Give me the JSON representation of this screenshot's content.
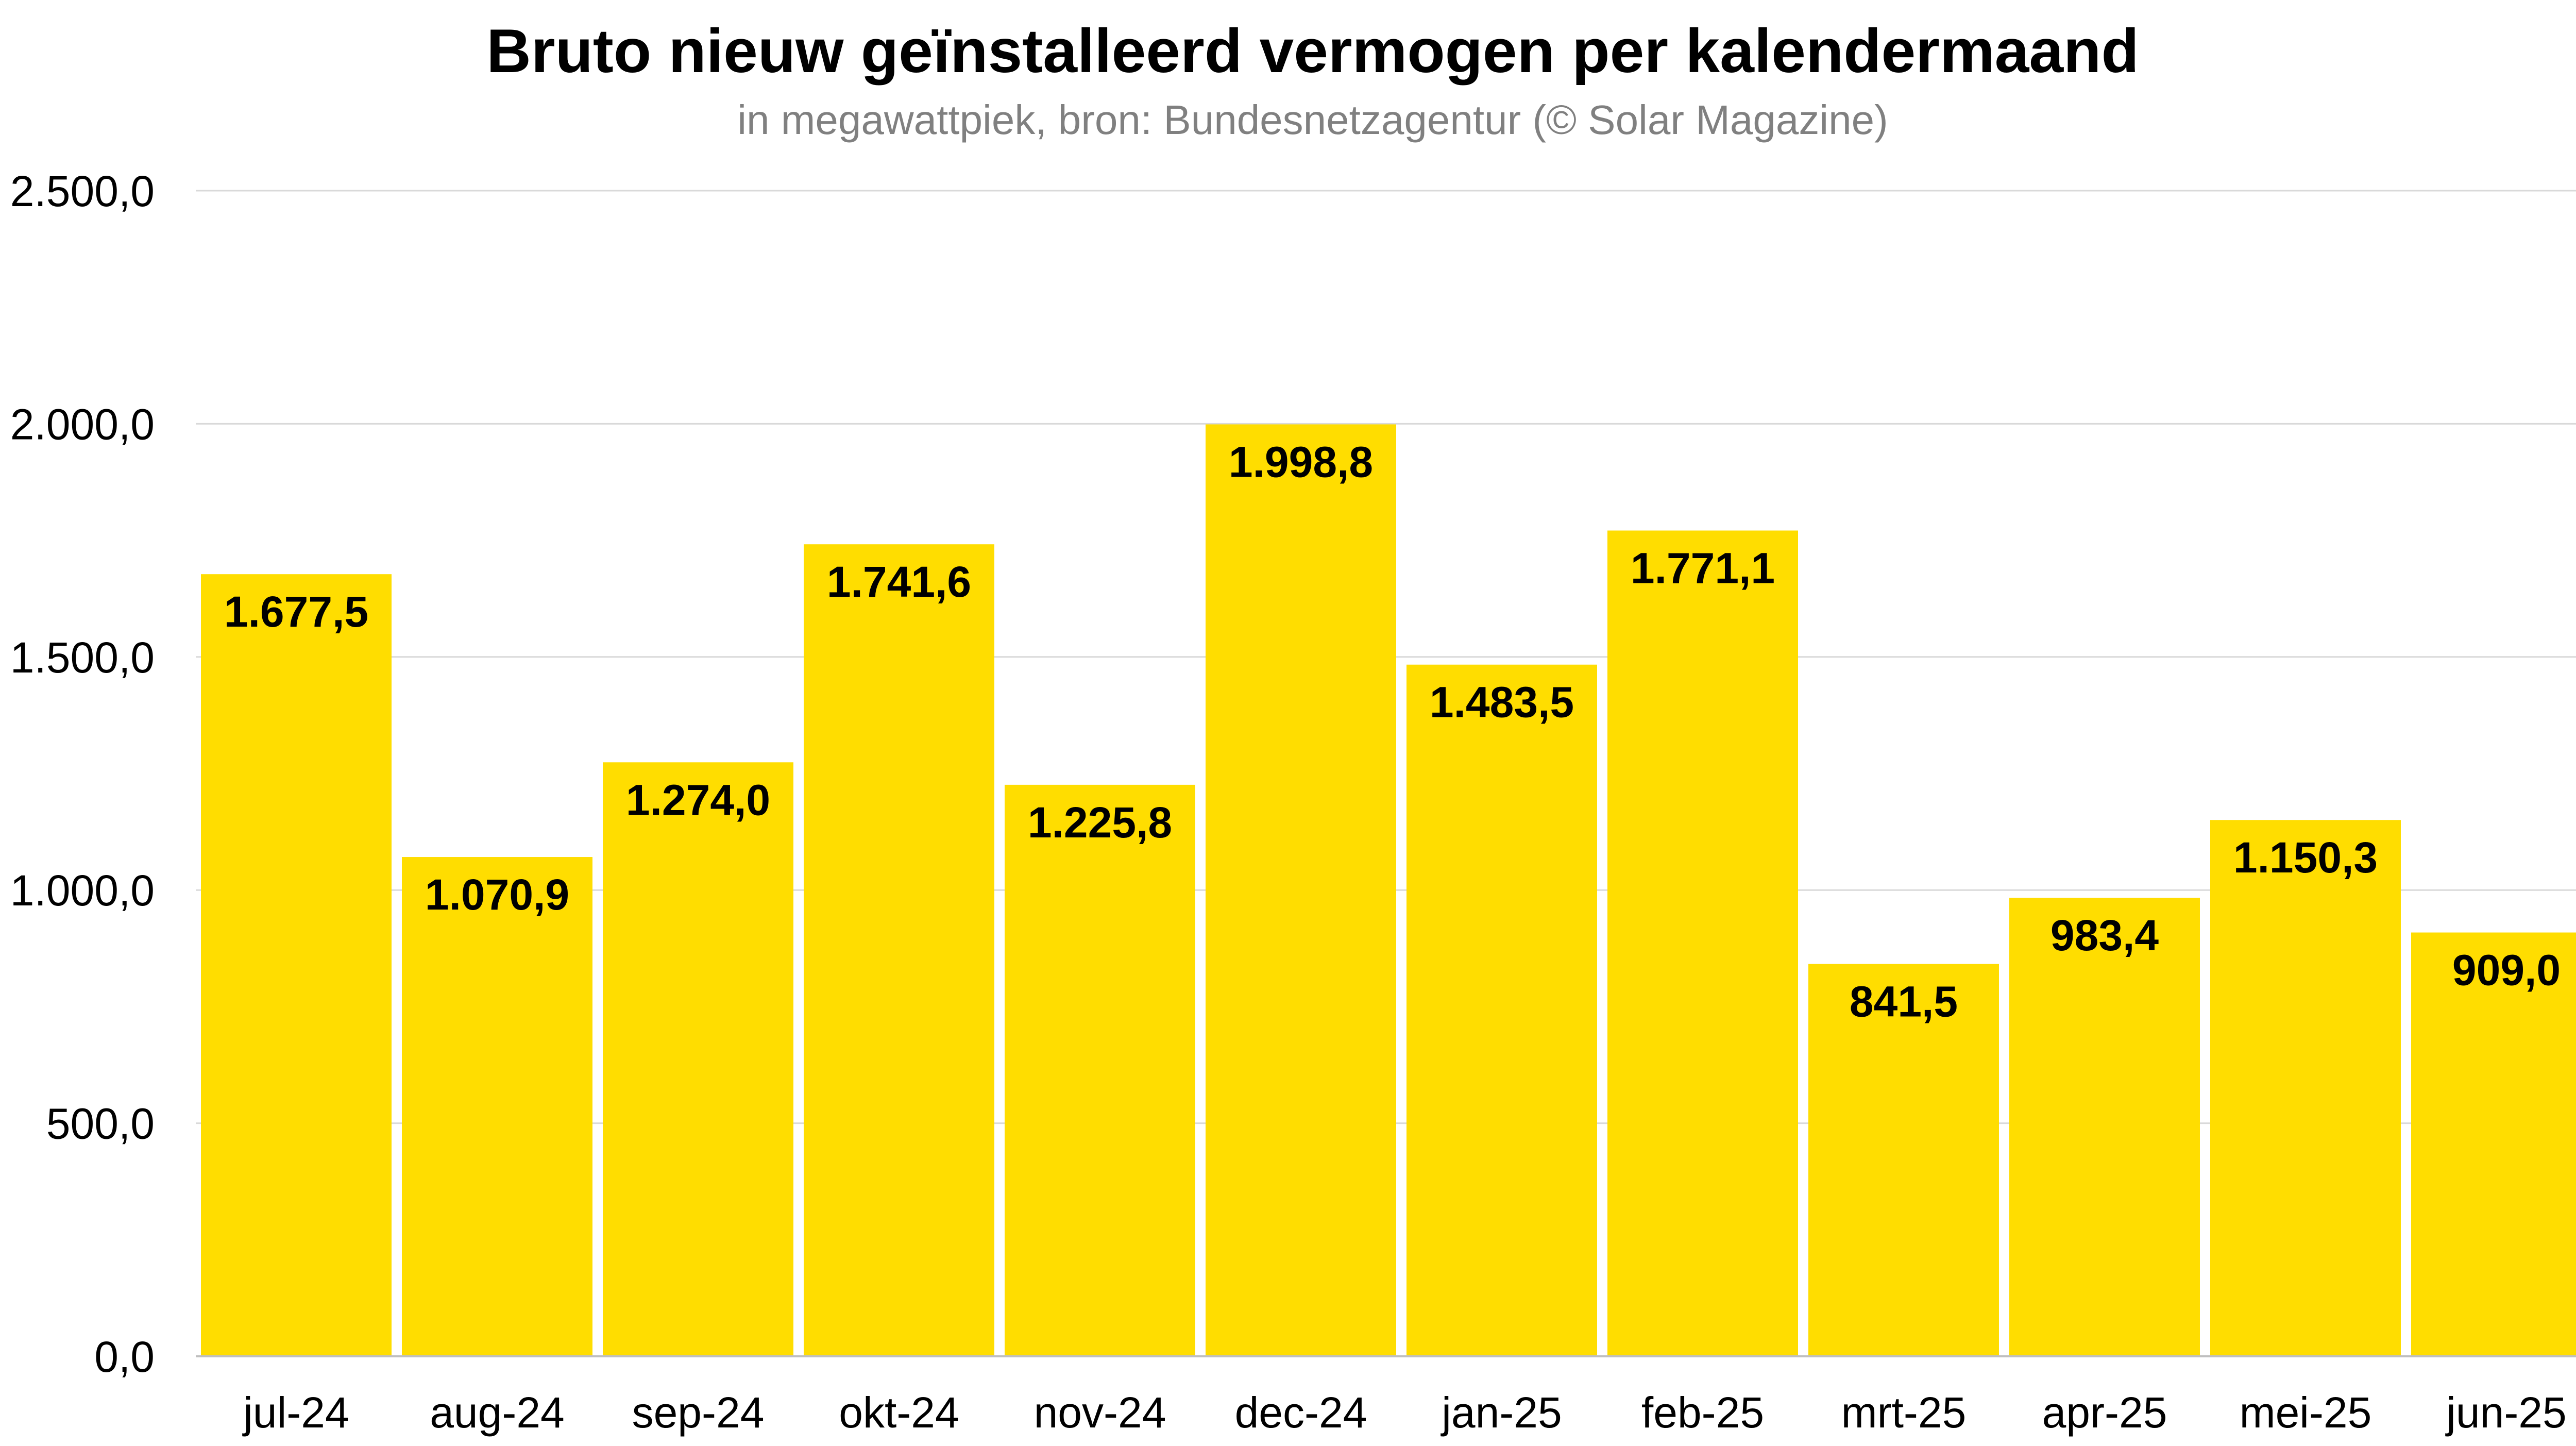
{
  "chart_data": {
    "type": "bar",
    "title": "Bruto nieuw geïnstalleerd vermogen per kalendermaand",
    "subtitle": "in megawattpiek, bron: Bundesnetzagentur (© Solar Magazine)",
    "xlabel": "",
    "ylabel": "",
    "ylim": [
      0,
      2500
    ],
    "yticks": [
      0,
      500,
      1000,
      1500,
      2000,
      2500
    ],
    "ytick_labels": [
      "0,0",
      "500,0",
      "1.000,0",
      "1.500,0",
      "2.000,0",
      "2.500,0"
    ],
    "categories": [
      "jul-24",
      "aug-24",
      "sep-24",
      "okt-24",
      "nov-24",
      "dec-24",
      "jan-25",
      "feb-25",
      "mrt-25",
      "apr-25",
      "mei-25",
      "jun-25"
    ],
    "values": [
      1677.5,
      1070.9,
      1274.0,
      1741.6,
      1225.8,
      1998.8,
      1483.5,
      1771.1,
      841.5,
      983.4,
      1150.3,
      909.0
    ],
    "data_labels": [
      "1.677,5",
      "1.070,9",
      "1.274,0",
      "1.741,6",
      "1.225,8",
      "1.998,8",
      "1.483,5",
      "1.771,1",
      "841,5",
      "983,4",
      "1.150,3",
      "909,0"
    ],
    "grid": true,
    "legend": "none",
    "colors": {
      "bar": "#FFDD00",
      "grid": "#D9D9D9",
      "axis": "#BFBFBF",
      "text": "#000000",
      "subtitle": "#808080"
    }
  }
}
